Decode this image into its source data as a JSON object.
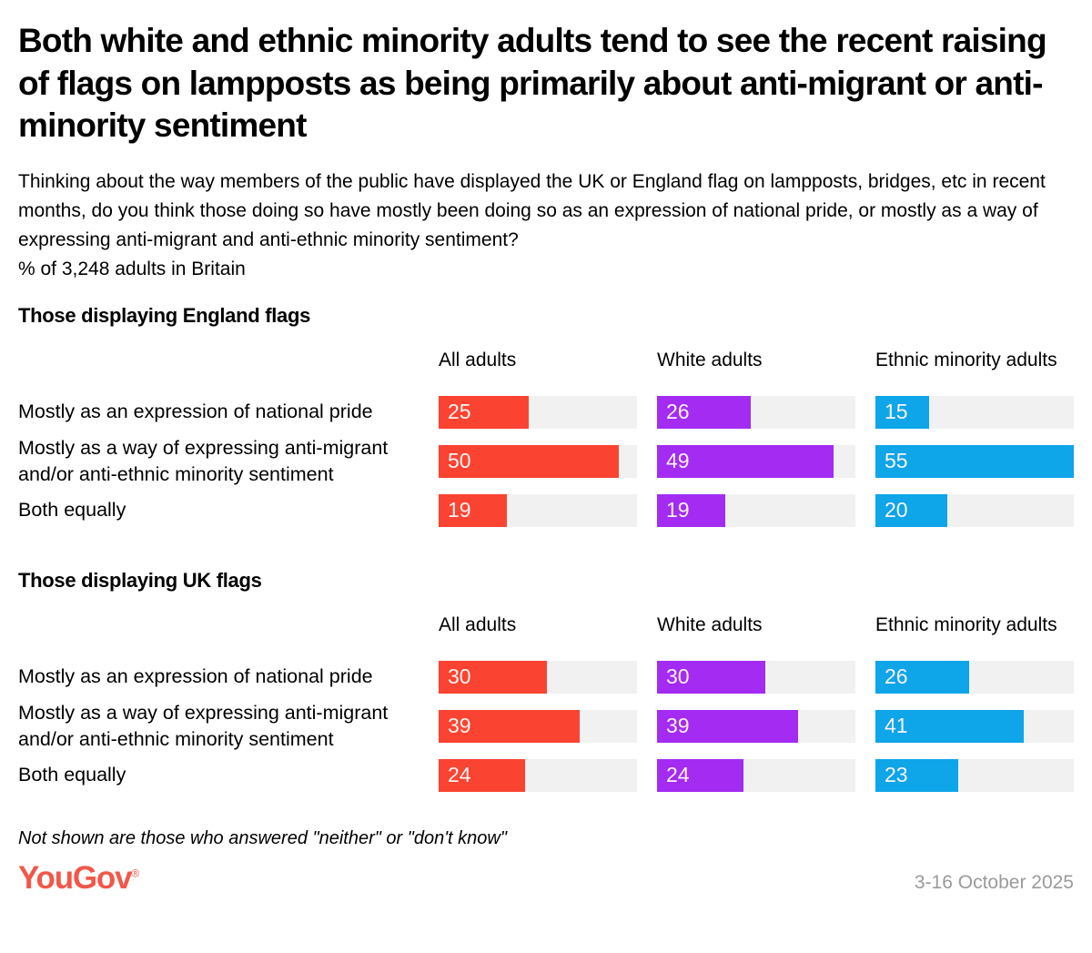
{
  "header": {
    "title": "Both white and ethnic minority adults tend to see the recent raising of flags on lampposts as being primarily about anti-migrant or anti-minority sentiment",
    "question": "Thinking about the way members of the public have displayed the UK or England flag on lampposts, bridges, etc in recent months, do you think those doing so have mostly been doing so as an expression of national pride, or mostly as a way of expressing anti-migrant and anti-ethnic minority sentiment?",
    "sample": "% of 3,248 adults in Britain"
  },
  "chart_data": [
    {
      "type": "bar",
      "title": "Those displaying England flags",
      "categories": [
        "Mostly as an expression of national pride",
        "Mostly as a way of expressing anti-migrant and/or anti-ethnic minority sentiment",
        "Both equally"
      ],
      "series": [
        {
          "name": "All adults",
          "color": "#fb4332",
          "values": [
            25,
            50,
            19
          ]
        },
        {
          "name": "White adults",
          "color": "#a32bf2",
          "values": [
            26,
            49,
            19
          ]
        },
        {
          "name": "Ethnic minority adults",
          "color": "#0ea5e9",
          "values": [
            15,
            55,
            20
          ]
        }
      ],
      "xlim": [
        0,
        55
      ],
      "orientation": "horizontal",
      "grid": false,
      "value_labels": "inside-left"
    },
    {
      "type": "bar",
      "title": "Those displaying UK flags",
      "categories": [
        "Mostly as an expression of national pride",
        "Mostly as a way of expressing anti-migrant and/or anti-ethnic minority sentiment",
        "Both equally"
      ],
      "series": [
        {
          "name": "All adults",
          "color": "#fb4332",
          "values": [
            30,
            39,
            24
          ]
        },
        {
          "name": "White adults",
          "color": "#a32bf2",
          "values": [
            30,
            39,
            24
          ]
        },
        {
          "name": "Ethnic minority adults",
          "color": "#0ea5e9",
          "values": [
            26,
            41,
            23
          ]
        }
      ],
      "xlim": [
        0,
        55
      ],
      "orientation": "horizontal",
      "grid": false,
      "value_labels": "inside-left"
    }
  ],
  "colors": {
    "all_adults": "#fb4332",
    "white_adults": "#a32bf2",
    "ethnic_minority_adults": "#0ea5e9",
    "bar_track": "#f1f1f1",
    "logo": "#f2574a",
    "date_text": "#9a9a9a"
  },
  "footer": {
    "footnote": "Not shown are those who answered \"neither\" or \"don't know\"",
    "brand": "YouGov",
    "brand_mark": "®",
    "date_range": "3-16 October 2025"
  }
}
